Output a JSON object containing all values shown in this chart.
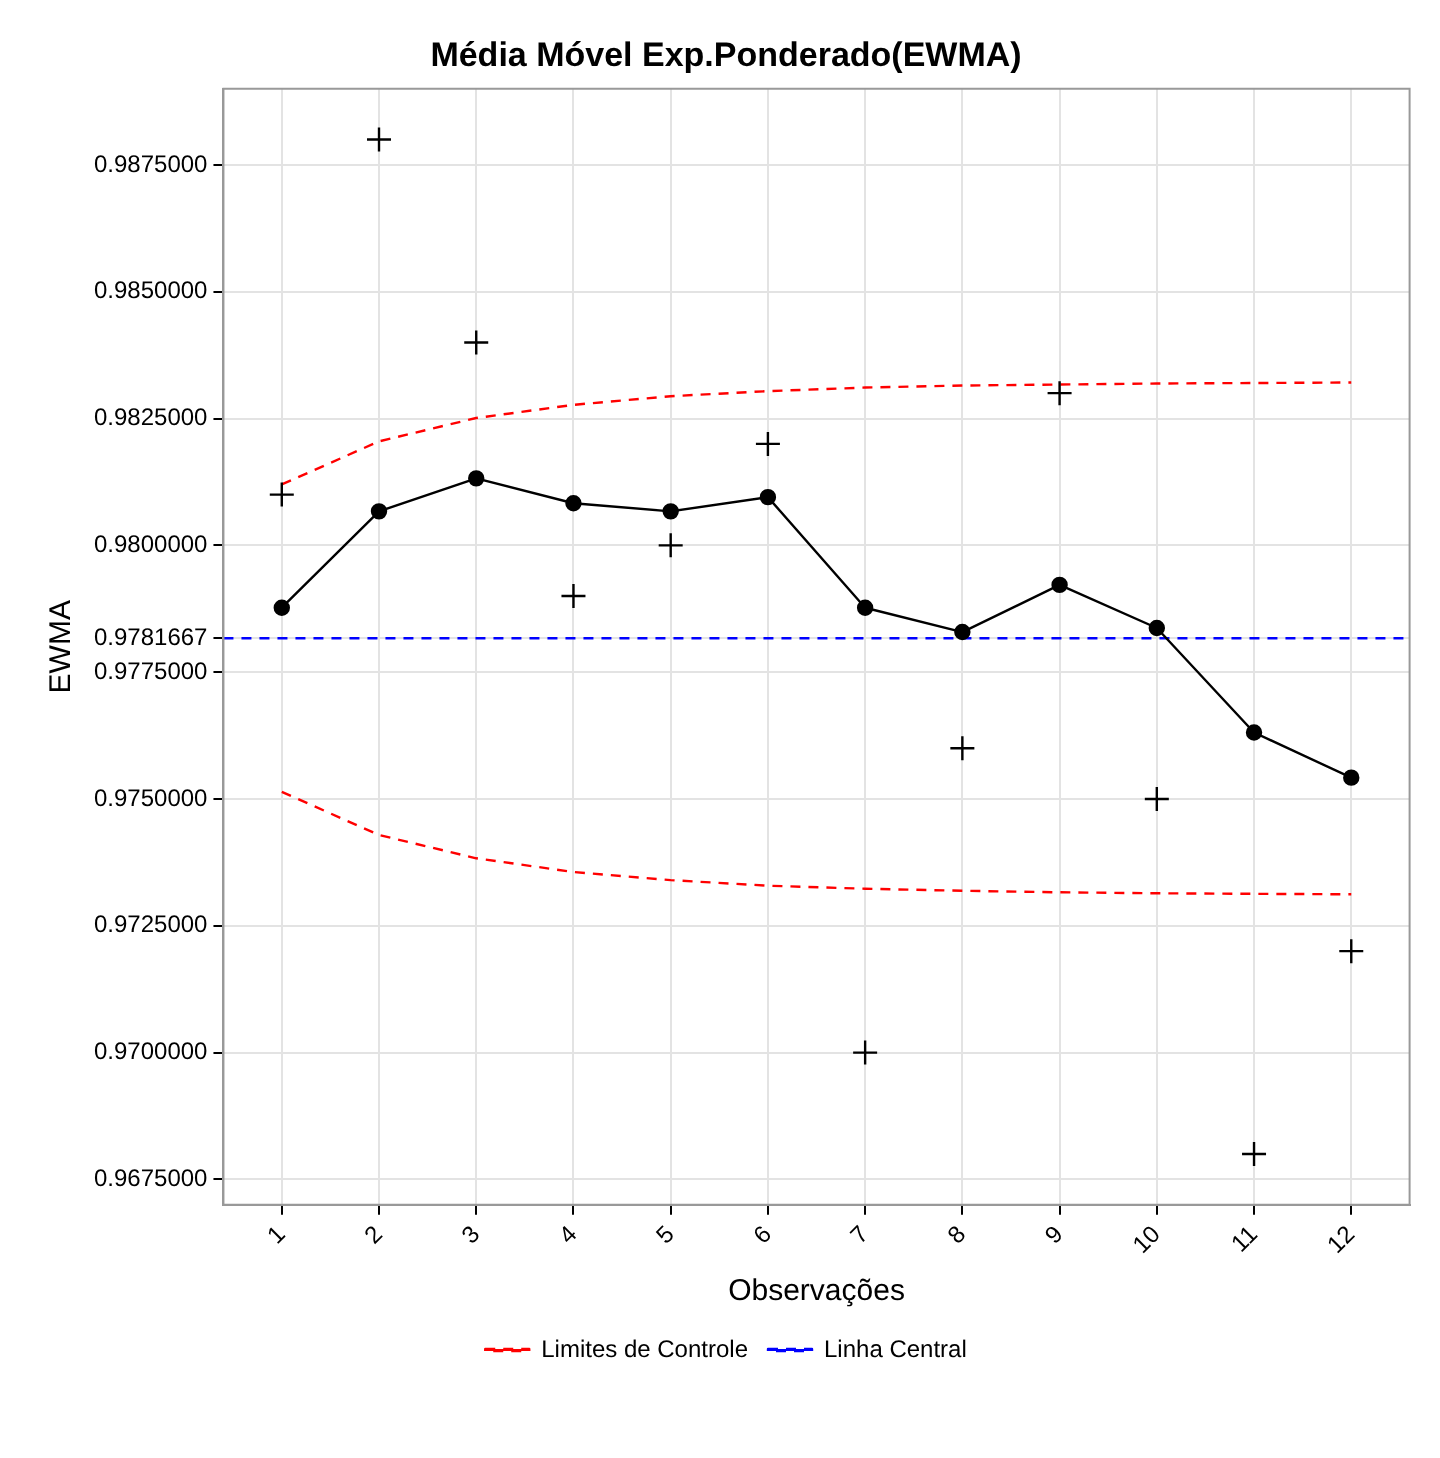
{
  "chart_data": {
    "type": "line",
    "title": "Média Móvel Exp.Ponderado(EWMA)",
    "xlabel": "Observações",
    "ylabel": "EWMA",
    "x": [
      1,
      2,
      3,
      4,
      5,
      6,
      7,
      8,
      9,
      10,
      11,
      12
    ],
    "series": [
      {
        "type": "scatter",
        "color": "#000000",
        "marker": "cross",
        "values": [
          0.981,
          0.988,
          0.984,
          0.979,
          0.98,
          0.982,
          0.97,
          0.976,
          0.983,
          0.975,
          0.968,
          0.972
        ]
      },
      {
        "type": "line",
        "color": "#000000",
        "marker": "circle",
        "line_style": "solid",
        "values": [
          0.97877,
          0.98067,
          0.98132,
          0.98083,
          0.98067,
          0.98095,
          0.97877,
          0.97829,
          0.97922,
          0.97837,
          0.97631,
          0.97542
        ]
      },
      {
        "type": "line",
        "name": "Limites de Controle",
        "color": "#ff0000",
        "marker": "none",
        "line_style": "dashed",
        "values": [
          0.9812,
          0.98205,
          0.98251,
          0.98277,
          0.98294,
          0.98304,
          0.98311,
          0.98315,
          0.98317,
          0.98319,
          0.9832,
          0.98321
        ]
      },
      {
        "type": "line",
        "color": "#ff0000",
        "marker": "none",
        "line_style": "dashed",
        "values": [
          0.97514,
          0.97429,
          0.97383,
          0.97356,
          0.9734,
          0.97329,
          0.97323,
          0.97319,
          0.97316,
          0.97314,
          0.97313,
          0.97312
        ]
      },
      {
        "type": "line",
        "name": "Linha Central",
        "color": "#0000ff",
        "marker": "none",
        "line_style": "dashed",
        "x": [
          0.4,
          12.6
        ],
        "values": [
          0.9781667,
          0.9781667
        ]
      }
    ],
    "xlim": [
      0.4,
      12.6
    ],
    "xticks": [
      1,
      2,
      3,
      4,
      5,
      6,
      7,
      8,
      9,
      10,
      11,
      12
    ],
    "ylim": [
      0.967,
      0.989
    ],
    "yticks": [
      {
        "value": 0.9675,
        "label": "0.9675000"
      },
      {
        "value": 0.97,
        "label": "0.9700000"
      },
      {
        "value": 0.9725,
        "label": "0.9725000"
      },
      {
        "value": 0.975,
        "label": "0.9750000"
      },
      {
        "value": 0.9775,
        "label": "0.9775000"
      },
      {
        "value": 0.9781667,
        "label": "0.9781667"
      },
      {
        "value": 0.98,
        "label": "0.9800000"
      },
      {
        "value": 0.9825,
        "label": "0.9825000"
      },
      {
        "value": 0.985,
        "label": "0.9850000"
      },
      {
        "value": 0.9875,
        "label": "0.9875000"
      }
    ],
    "grid": true,
    "legend": "bottom"
  }
}
